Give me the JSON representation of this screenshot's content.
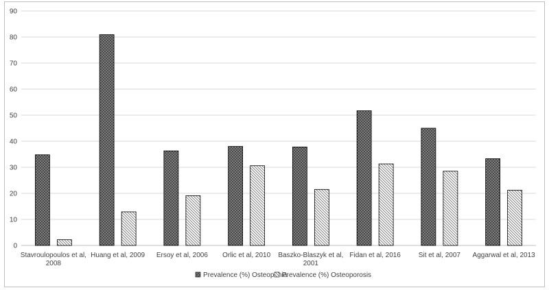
{
  "chart_data": {
    "type": "bar",
    "categories": [
      [
        "Stavroulopoulos et al,",
        "2008"
      ],
      [
        "Huang et al, 2009"
      ],
      [
        "Ersoy et al, 2006"
      ],
      [
        "Orlic et al, 2010"
      ],
      [
        "Baszko-Blaszyk et al,",
        "2001"
      ],
      [
        "Fidan et al, 2016"
      ],
      [
        "Sit et al, 2007"
      ],
      [
        "Aggarwal et al, 2013"
      ]
    ],
    "series": [
      {
        "name": "Prevalence (%) Osteopenia",
        "values": [
          34.8,
          80.9,
          36.3,
          38.0,
          37.8,
          51.7,
          45.0,
          33.3
        ],
        "pattern": "dark-crosshatch"
      },
      {
        "name": "Prevalence (%) Osteoporosis",
        "values": [
          2.2,
          12.9,
          19.1,
          30.6,
          21.5,
          31.3,
          28.5,
          21.2
        ],
        "pattern": "light-diagonal"
      }
    ],
    "ylim": [
      0,
      90
    ],
    "yticks": [
      0,
      10,
      20,
      30,
      40,
      50,
      60,
      70,
      80,
      90
    ],
    "grid": true,
    "legend_position": "bottom",
    "colors": {
      "grid": "#d9d9d9",
      "bar_edge": "#000000",
      "text": "#404040"
    }
  }
}
